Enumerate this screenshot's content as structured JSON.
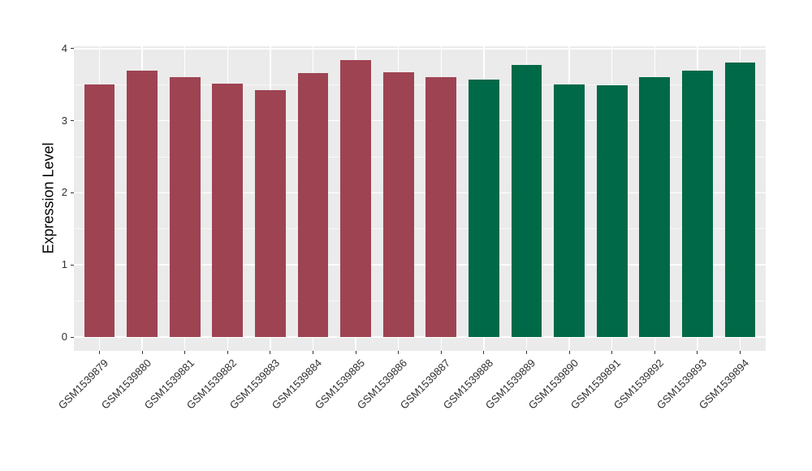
{
  "chart_data": {
    "type": "bar",
    "title": "",
    "xlabel": "",
    "ylabel": "Expression Level",
    "categories": [
      "GSM1539879",
      "GSM1539880",
      "GSM1539881",
      "GSM1539882",
      "GSM1539883",
      "GSM1539884",
      "GSM1539885",
      "GSM1539886",
      "GSM1539887",
      "GSM1539888",
      "GSM1539889",
      "GSM1539890",
      "GSM1539891",
      "GSM1539892",
      "GSM1539893",
      "GSM1539894"
    ],
    "values": [
      3.5,
      3.69,
      3.61,
      3.52,
      3.42,
      3.66,
      3.84,
      3.67,
      3.6,
      3.57,
      3.77,
      3.5,
      3.49,
      3.6,
      3.69,
      3.81
    ],
    "group_index": [
      0,
      0,
      0,
      0,
      0,
      0,
      0,
      0,
      0,
      1,
      1,
      1,
      1,
      1,
      1,
      1
    ],
    "group_colors": [
      "#9E4352",
      "#006947"
    ],
    "ylim": [
      0,
      4
    ],
    "yticks": [
      0,
      1,
      2,
      3,
      4
    ],
    "ytick_labels": [
      "0",
      "1",
      "2",
      "3",
      "4"
    ],
    "y_minor_gridlines": [
      0.5,
      1.5,
      2.5,
      3.5
    ],
    "grid": true,
    "legend_position": "none",
    "panel_background": "#EBEBEB",
    "gridline_color": "#FFFFFF",
    "x_label_angle_degrees": 45
  }
}
